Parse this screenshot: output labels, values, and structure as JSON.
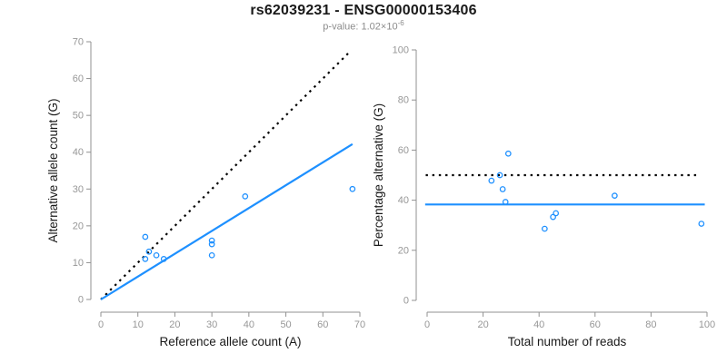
{
  "header": {
    "title": "rs62039231 - ENSG00000153406",
    "subtitle_prefix": "p-value: 1.02×10",
    "subtitle_exponent": "-6"
  },
  "colors": {
    "accent_blue": "#1E90FF",
    "dashed_black": "#000000",
    "axis_gray": "#919191",
    "tick_label_gray": "#979797",
    "label_color": "#1a1a1a",
    "background": "#ffffff"
  },
  "chart_data": [
    {
      "type": "scatter",
      "xlabel": "Reference allele count (A)",
      "ylabel": "Alternative allele count (G)",
      "xlim": [
        0,
        70
      ],
      "ylim": [
        0,
        70
      ],
      "xticks": [
        0,
        10,
        20,
        30,
        40,
        50,
        60,
        70
      ],
      "yticks": [
        0,
        10,
        20,
        30,
        40,
        50,
        60,
        70
      ],
      "grid": false,
      "legend": null,
      "points": [
        [
          12,
          17
        ],
        [
          12,
          11
        ],
        [
          13,
          13
        ],
        [
          15,
          12
        ],
        [
          17,
          11
        ],
        [
          30,
          16
        ],
        [
          30,
          15
        ],
        [
          30,
          12
        ],
        [
          39,
          28
        ],
        [
          68,
          30
        ]
      ],
      "lines": [
        {
          "name": "identity-line",
          "style": "dotted",
          "color": "#000000",
          "x1": 0,
          "y1": 0,
          "x2": 67.5,
          "y2": 67.5
        },
        {
          "name": "fit-line",
          "style": "solid",
          "color": "#1E90FF",
          "x1": 0,
          "y1": 0,
          "x2": 68,
          "y2": 42.2
        }
      ]
    },
    {
      "type": "scatter",
      "xlabel": "Total number of reads",
      "ylabel": "Percentage alternative (G)",
      "xlim": [
        0,
        100
      ],
      "ylim": [
        0,
        100
      ],
      "xticks": [
        0,
        20,
        40,
        60,
        80,
        100
      ],
      "yticks": [
        0,
        20,
        40,
        60,
        80,
        100
      ],
      "grid": false,
      "legend": null,
      "points": [
        [
          29,
          58.6
        ],
        [
          23,
          47.8
        ],
        [
          26,
          50.0
        ],
        [
          27,
          44.4
        ],
        [
          28,
          39.3
        ],
        [
          46,
          34.8
        ],
        [
          45,
          33.3
        ],
        [
          42,
          28.6
        ],
        [
          67,
          41.8
        ],
        [
          98,
          30.6
        ]
      ],
      "lines": [
        {
          "name": "fifty-percent-line",
          "style": "dotted",
          "color": "#000000",
          "x1": -0.5,
          "y1": 50,
          "x2": 96.8,
          "y2": 50
        },
        {
          "name": "mean-percentage-line",
          "style": "solid",
          "color": "#1E90FF",
          "x1": -0.7,
          "y1": 38.3,
          "x2": 99.2,
          "y2": 38.3
        }
      ]
    }
  ]
}
